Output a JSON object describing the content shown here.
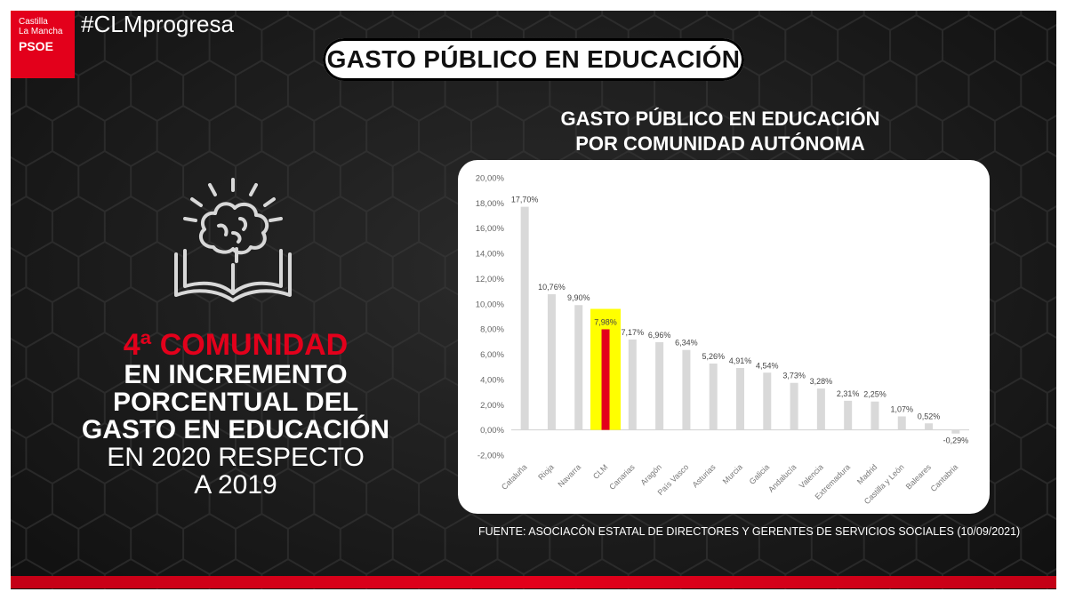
{
  "logo": {
    "line1": "Castilla",
    "line2": "La Mancha",
    "line3": "PSOE"
  },
  "hashtag": "#CLMprogresa",
  "main_title": "GASTO PÚBLICO EN EDUCACIÓN",
  "headline": {
    "line1": "4ª COMUNIDAD",
    "line2": "EN INCREMENTO",
    "line3": "PORCENTUAL DEL",
    "line4": "GASTO EN EDUCACIÓN",
    "line5": "EN 2020 RESPECTO",
    "line6": "A 2019"
  },
  "chart_title": {
    "line1": "GASTO PÚBLICO EN EDUCACIÓN",
    "line2": "POR COMUNIDAD AUTÓNOMA"
  },
  "source": "FUENTE: ASOCIACÓN ESTATAL DE DIRECTORES Y GERENTES DE SERVICIOS SOCIALES (10/09/2021)",
  "colors": {
    "brand_red": "#e3001b",
    "bar_gray": "#d9d9d9",
    "highlight_yellow": "#ffff00",
    "highlight_bar": "#e3001b"
  },
  "icon_name": "brain-book-icon",
  "chart_data": {
    "type": "bar",
    "title": "GASTO PÚBLICO EN EDUCACIÓN POR COMUNIDAD AUTÓNOMA",
    "xlabel": "",
    "ylabel": "",
    "ylim": [
      -2,
      20
    ],
    "yticks": [
      "-2,00%",
      "0,00%",
      "2,00%",
      "4,00%",
      "6,00%",
      "8,00%",
      "10,00%",
      "12,00%",
      "14,00%",
      "16,00%",
      "18,00%",
      "20,00%"
    ],
    "categories": [
      "Cataluña",
      "Rioja",
      "Navarra",
      "CLM",
      "Canarias",
      "Aragón",
      "País Vasco",
      "Asturias",
      "Murcia",
      "Galicia",
      "Andalucía",
      "Valencia",
      "Extremadura",
      "Madrid",
      "Castilla y León",
      "Baleares",
      "Cantabria"
    ],
    "values": [
      17.7,
      10.76,
      9.9,
      7.98,
      7.17,
      6.96,
      6.34,
      5.26,
      4.91,
      4.54,
      3.73,
      3.28,
      2.31,
      2.25,
      1.07,
      0.52,
      -0.29
    ],
    "labels": [
      "17,70%",
      "10,76%",
      "9,90%",
      "7,98%",
      "7,17%",
      "6,96%",
      "6,34%",
      "5,26%",
      "4,91%",
      "4,54%",
      "3,73%",
      "3,28%",
      "2,31%",
      "2,25%",
      "1,07%",
      "0,52%",
      "-0,29%"
    ],
    "highlight": "CLM",
    "grid": false,
    "legend": "none"
  }
}
